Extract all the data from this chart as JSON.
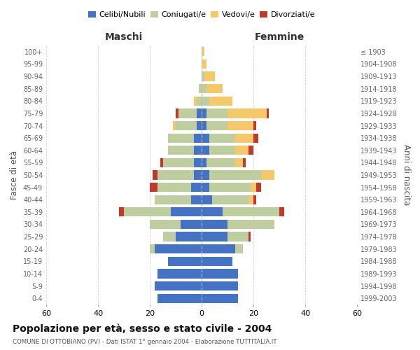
{
  "age_groups": [
    "0-4",
    "5-9",
    "10-14",
    "15-19",
    "20-24",
    "25-29",
    "30-34",
    "35-39",
    "40-44",
    "45-49",
    "50-54",
    "55-59",
    "60-64",
    "65-69",
    "70-74",
    "75-79",
    "80-84",
    "85-89",
    "90-94",
    "95-99",
    "100+"
  ],
  "birth_years": [
    "1999-2003",
    "1994-1998",
    "1989-1993",
    "1984-1988",
    "1979-1983",
    "1974-1978",
    "1969-1973",
    "1964-1968",
    "1959-1963",
    "1954-1958",
    "1949-1953",
    "1944-1948",
    "1939-1943",
    "1934-1938",
    "1929-1933",
    "1924-1928",
    "1919-1923",
    "1914-1918",
    "1909-1913",
    "1904-1908",
    "≤ 1903"
  ],
  "maschi": {
    "celibi": [
      17,
      18,
      17,
      13,
      18,
      10,
      8,
      12,
      4,
      4,
      3,
      3,
      3,
      3,
      2,
      2,
      0,
      0,
      0,
      0,
      0
    ],
    "coniugati": [
      0,
      0,
      0,
      0,
      2,
      5,
      12,
      18,
      14,
      13,
      14,
      12,
      10,
      10,
      8,
      7,
      2,
      1,
      0,
      0,
      0
    ],
    "vedovi": [
      0,
      0,
      0,
      0,
      0,
      0,
      0,
      0,
      0,
      0,
      0,
      0,
      0,
      0,
      1,
      0,
      1,
      0,
      0,
      0,
      0
    ],
    "divorziati": [
      0,
      0,
      0,
      0,
      0,
      0,
      0,
      2,
      0,
      3,
      2,
      1,
      0,
      0,
      0,
      1,
      0,
      0,
      0,
      0,
      0
    ]
  },
  "femmine": {
    "nubili": [
      14,
      14,
      14,
      12,
      13,
      10,
      10,
      8,
      4,
      3,
      3,
      2,
      3,
      3,
      2,
      2,
      0,
      0,
      0,
      0,
      0
    ],
    "coniugate": [
      0,
      0,
      0,
      0,
      3,
      8,
      18,
      22,
      14,
      16,
      20,
      11,
      10,
      10,
      8,
      8,
      3,
      2,
      1,
      0,
      0
    ],
    "vedove": [
      0,
      0,
      0,
      0,
      0,
      0,
      0,
      0,
      2,
      2,
      5,
      3,
      5,
      7,
      10,
      15,
      9,
      6,
      4,
      2,
      1
    ],
    "divorziate": [
      0,
      0,
      0,
      0,
      0,
      1,
      0,
      2,
      1,
      2,
      0,
      1,
      2,
      2,
      1,
      1,
      0,
      0,
      0,
      0,
      0
    ]
  },
  "colors": {
    "celibi_nubili": "#4472C4",
    "coniugati": "#BFCE9E",
    "vedovi": "#F5C96A",
    "divorziati": "#C0392B"
  },
  "xlim": 60,
  "title": "Popolazione per età, sesso e stato civile - 2004",
  "subtitle": "COMUNE DI OTTOBIANO (PV) - Dati ISTAT 1° gennaio 2004 - Elaborazione TUTTITALIA.IT",
  "ylabel_left": "Fasce di età",
  "ylabel_right": "Anni di nascita",
  "xlabel_left": "Maschi",
  "xlabel_right": "Femmine",
  "background_color": "#ffffff",
  "grid_color": "#cccccc"
}
